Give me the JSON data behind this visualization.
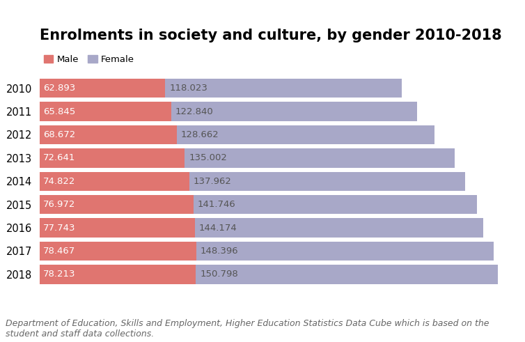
{
  "title": "Enrolments in society and culture, by gender 2010-2018",
  "years": [
    "2010",
    "2011",
    "2012",
    "2013",
    "2014",
    "2015",
    "2016",
    "2017",
    "2018"
  ],
  "male_values": [
    62.893,
    65.845,
    68.672,
    72.641,
    74.822,
    76.972,
    77.743,
    78.467,
    78.213
  ],
  "female_values": [
    118.023,
    122.84,
    128.662,
    135.002,
    137.962,
    141.746,
    144.174,
    148.396,
    150.798
  ],
  "male_labels": [
    "62.893",
    "65.845",
    "68.672",
    "72.641",
    "74.822",
    "76.972",
    "77.743",
    "78.467",
    "78.213"
  ],
  "female_labels": [
    "118.023",
    "122.840",
    "128.662",
    "135.002",
    "137.962",
    "141.746",
    "144.174",
    "148.396",
    "150.798"
  ],
  "male_color": "#E07570",
  "female_color": "#A8A8C8",
  "male_label": "Male",
  "female_label": "Female",
  "caption": "Department of Education, Skills and Employment, Higher Education Statistics Data Cube which is based on the\nstudent and staff data collections.",
  "title_fontsize": 15,
  "label_fontsize": 9.5,
  "caption_fontsize": 9,
  "bar_height": 0.82,
  "xlim": [
    0,
    240
  ],
  "background_color": "#ffffff"
}
